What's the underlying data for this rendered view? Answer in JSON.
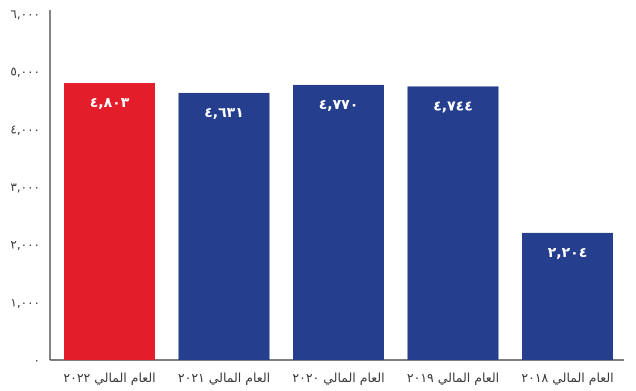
{
  "chart_data": {
    "type": "bar",
    "categories": [
      "العام المالي ٢٠٢٢",
      "العام المالي ٢٠٢١",
      "العام المالي ٢٠٢٠",
      "العام المالي ٢٠١٩",
      "العام المالي ٢٠١٨"
    ],
    "values": [
      4803,
      4631,
      4770,
      4744,
      2204
    ],
    "data_labels": [
      "٤,٨٠٣",
      "٤,٦٣١",
      "٤,٧٧٠",
      "٤,٧٤٤",
      "٢,٢٠٤"
    ],
    "ylim": [
      0,
      6000
    ],
    "yticks": [
      0,
      1000,
      2000,
      3000,
      4000,
      5000,
      6000
    ],
    "ytick_labels": [
      "٠",
      "١,٠٠٠",
      "٢,٠٠٠",
      "٣,٠٠٠",
      "٤,٠٠٠",
      "٥,٠٠٠",
      "٦,٠٠٠"
    ],
    "grid": false,
    "legend": "none",
    "colors": {
      "highlight": "#e31d2a",
      "bar": "#253f8e",
      "axis": "#333333"
    },
    "highlight_index": 0
  }
}
